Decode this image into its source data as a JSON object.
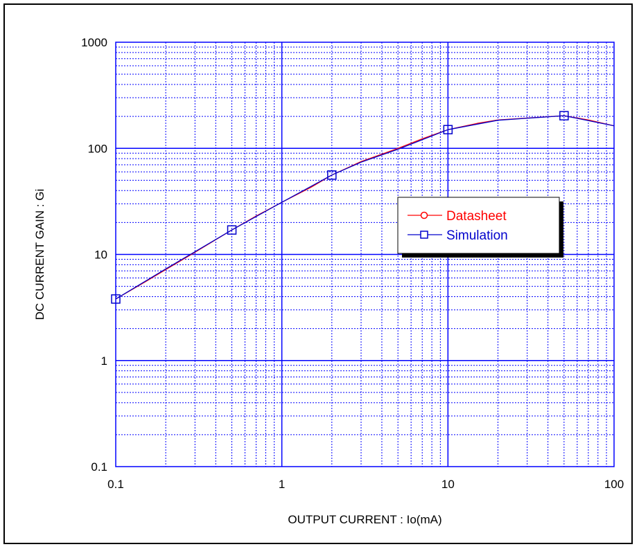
{
  "chart_data": {
    "type": "line",
    "title": "",
    "xlabel": "OUTPUT CURRENT : Io(mA)",
    "ylabel": "DC CURRENT GAIN : Gi",
    "x_scale": "log",
    "y_scale": "log",
    "xlim": [
      0.1,
      100
    ],
    "ylim": [
      0.1,
      1000
    ],
    "x_ticks": [
      {
        "value": 0.1,
        "label": "0.1"
      },
      {
        "value": 1,
        "label": "1"
      },
      {
        "value": 10,
        "label": "10"
      },
      {
        "value": 100,
        "label": "100"
      }
    ],
    "y_ticks": [
      {
        "value": 0.1,
        "label": "0.1"
      },
      {
        "value": 1,
        "label": "1"
      },
      {
        "value": 10,
        "label": "10"
      },
      {
        "value": 100,
        "label": "100"
      },
      {
        "value": 1000,
        "label": "1000"
      }
    ],
    "grid": true,
    "legend_position": "center-right",
    "series": [
      {
        "name": "Datasheet",
        "color": "#ff0000",
        "marker": "circle",
        "curve": [
          [
            0.1,
            3.8
          ],
          [
            0.15,
            5.5
          ],
          [
            0.2,
            7.2
          ],
          [
            0.3,
            10.5
          ],
          [
            0.5,
            17
          ],
          [
            0.7,
            23
          ],
          [
            1,
            31
          ],
          [
            1.5,
            43
          ],
          [
            2,
            56
          ],
          [
            3,
            75
          ],
          [
            5,
            100
          ],
          [
            7,
            123
          ],
          [
            10,
            150
          ],
          [
            15,
            172
          ],
          [
            20,
            185
          ],
          [
            30,
            193
          ],
          [
            50,
            203
          ],
          [
            70,
            185
          ],
          [
            100,
            163
          ]
        ],
        "markers": []
      },
      {
        "name": "Simulation",
        "color": "#0000cc",
        "marker": "square",
        "curve": [
          [
            0.1,
            3.8
          ],
          [
            0.2,
            7.3
          ],
          [
            0.3,
            10.6
          ],
          [
            0.5,
            17
          ],
          [
            1,
            31
          ],
          [
            2,
            56
          ],
          [
            3,
            74
          ],
          [
            5,
            98
          ],
          [
            10,
            150
          ],
          [
            20,
            184
          ],
          [
            50,
            203
          ],
          [
            100,
            163
          ]
        ],
        "markers": [
          [
            0.1,
            3.8
          ],
          [
            0.5,
            17
          ],
          [
            2,
            56
          ],
          [
            10,
            150
          ],
          [
            50,
            203
          ]
        ]
      }
    ]
  },
  "colors": {
    "grid_major": "#0000ff",
    "grid_minor": "#0000ff",
    "frame": "#000000"
  }
}
